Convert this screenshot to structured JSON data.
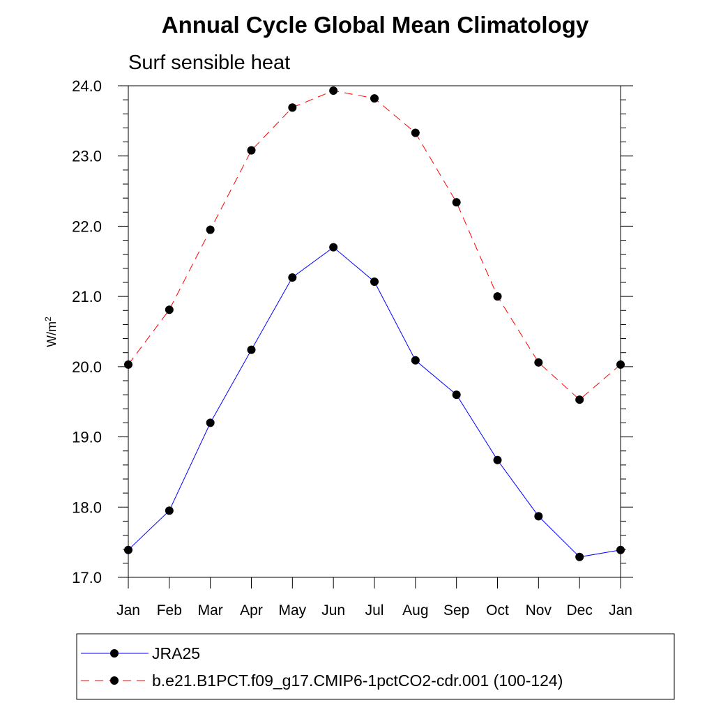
{
  "chart_data": {
    "type": "line",
    "title": "Annual Cycle Global Mean Climatology",
    "subtitle": "Surf sensible heat",
    "ylabel_base": "W/m",
    "ylabel_sup": "2",
    "xlabel": "",
    "categories": [
      "Jan",
      "Feb",
      "Mar",
      "Apr",
      "May",
      "Jun",
      "Jul",
      "Aug",
      "Sep",
      "Oct",
      "Nov",
      "Dec",
      "Jan"
    ],
    "ylim": [
      17.0,
      24.0
    ],
    "yticks": [
      "17.0",
      "18.0",
      "19.0",
      "20.0",
      "21.0",
      "22.0",
      "23.0",
      "24.0"
    ],
    "grid": false,
    "legend_position": "bottom",
    "series": [
      {
        "name": "JRA25",
        "color": "#0000ff",
        "style": "solid",
        "values": [
          17.39,
          17.95,
          19.2,
          20.24,
          21.27,
          21.7,
          21.21,
          20.09,
          19.6,
          18.67,
          17.87,
          17.29,
          17.39
        ]
      },
      {
        "name": "b.e21.B1PCT.f09_g17.CMIP6-1pctCO2-cdr.001 (100-124)",
        "color": "#ff0000",
        "style": "dashed",
        "values": [
          20.03,
          20.81,
          21.95,
          23.08,
          23.69,
          23.93,
          23.82,
          23.33,
          22.34,
          21.0,
          20.06,
          19.53,
          20.03
        ]
      }
    ]
  }
}
